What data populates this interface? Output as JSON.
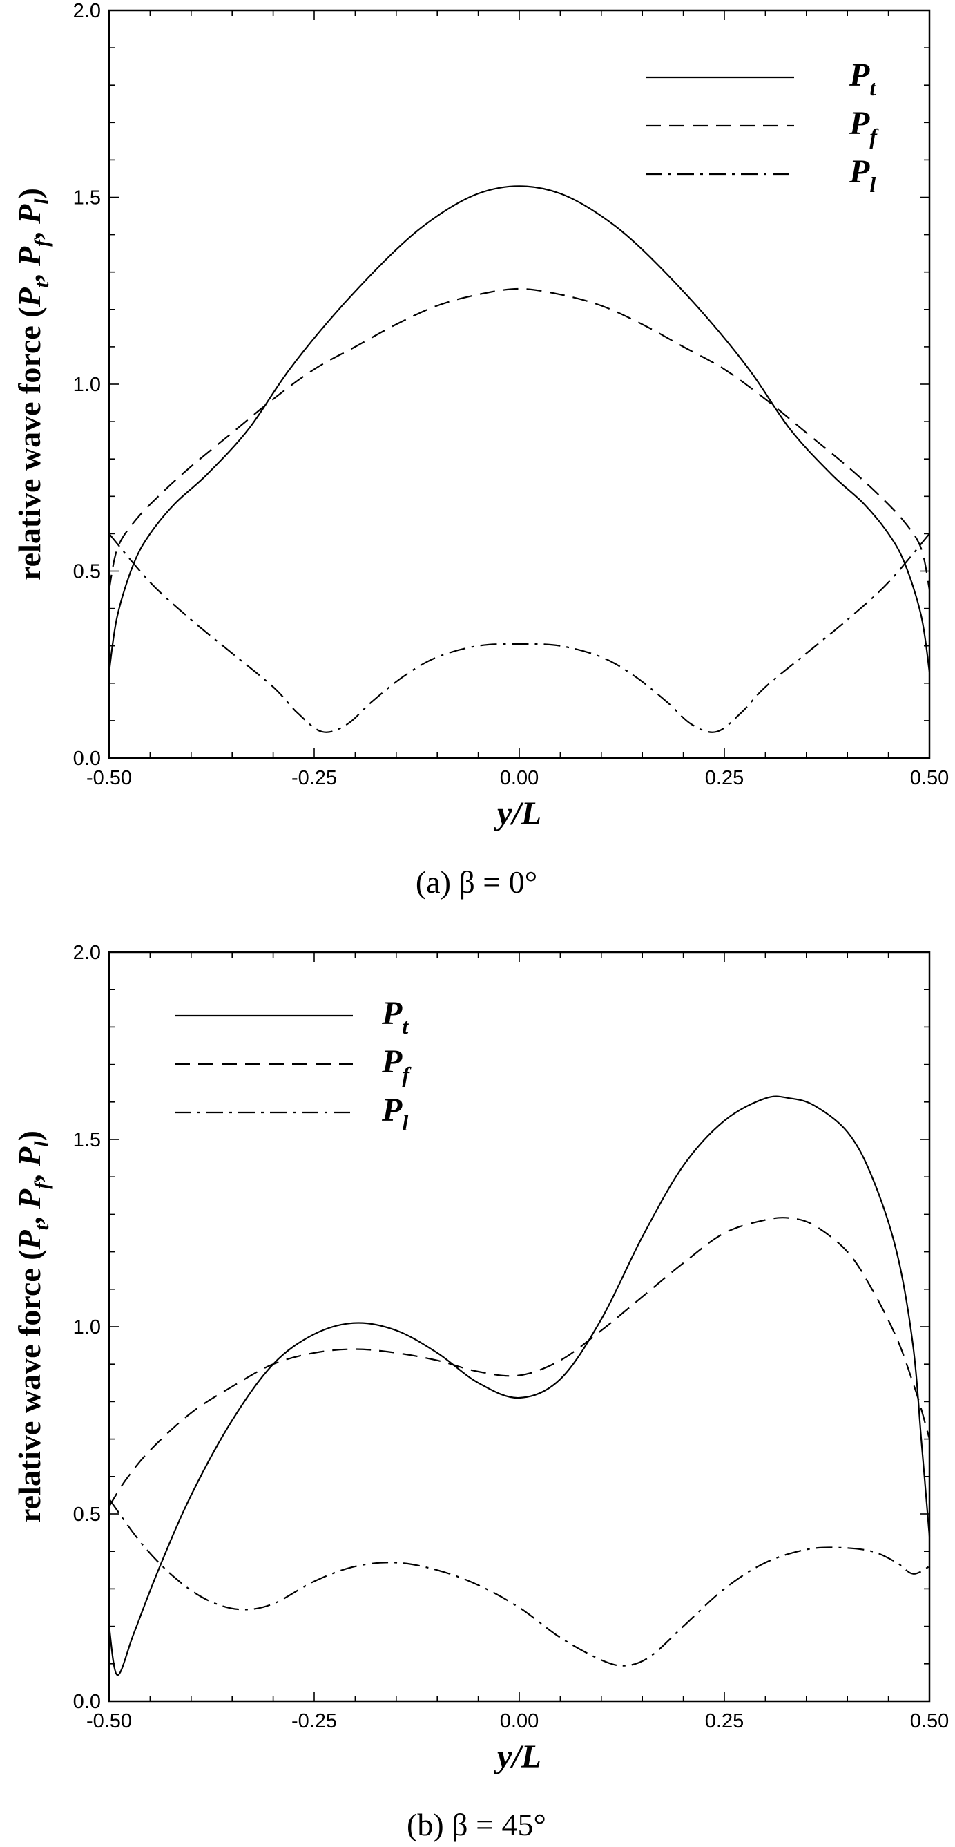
{
  "chart_data": [
    {
      "type": "line",
      "caption": "(a)  β = 0°",
      "xlabel": "y/L",
      "ylabel": "relative wave force (P",
      "ylabel_parts": [
        "relative wave force (",
        "P",
        "t",
        ", ",
        "P",
        "f",
        ", ",
        "P",
        "l",
        ")"
      ],
      "xlim": [
        -0.5,
        0.5
      ],
      "ylim": [
        0.0,
        2.0
      ],
      "x_ticks": [
        "-0.50",
        "-0.25",
        "0.00",
        "0.25",
        "0.50"
      ],
      "y_ticks": [
        "0.0",
        "0.5",
        "1.0",
        "1.5",
        "2.0"
      ],
      "grid": false,
      "legend_position": "top-right",
      "series": [
        {
          "name": "P",
          "subscript": "t",
          "style": "solid",
          "x": [
            -0.5,
            -0.49,
            -0.47,
            -0.45,
            -0.42,
            -0.38,
            -0.33,
            -0.28,
            -0.22,
            -0.15,
            -0.1,
            -0.05,
            0.0,
            0.05,
            0.1,
            0.15,
            0.22,
            0.28,
            0.33,
            0.38,
            0.42,
            0.45,
            0.47,
            0.49,
            0.5
          ],
          "y": [
            0.23,
            0.38,
            0.52,
            0.6,
            0.68,
            0.76,
            0.88,
            1.04,
            1.2,
            1.36,
            1.45,
            1.51,
            1.53,
            1.51,
            1.45,
            1.36,
            1.2,
            1.04,
            0.88,
            0.76,
            0.68,
            0.6,
            0.52,
            0.38,
            0.23
          ]
        },
        {
          "name": "P",
          "subscript": "f",
          "style": "dashed",
          "x": [
            -0.5,
            -0.49,
            -0.47,
            -0.44,
            -0.4,
            -0.35,
            -0.3,
            -0.25,
            -0.2,
            -0.15,
            -0.1,
            -0.05,
            0.0,
            0.05,
            0.1,
            0.15,
            0.2,
            0.25,
            0.3,
            0.35,
            0.4,
            0.44,
            0.47,
            0.49,
            0.5
          ],
          "y": [
            0.45,
            0.56,
            0.63,
            0.7,
            0.78,
            0.87,
            0.96,
            1.04,
            1.1,
            1.16,
            1.21,
            1.24,
            1.255,
            1.24,
            1.21,
            1.16,
            1.1,
            1.04,
            0.96,
            0.87,
            0.78,
            0.7,
            0.63,
            0.56,
            0.45
          ]
        },
        {
          "name": "P",
          "subscript": "l",
          "style": "dashdot",
          "x": [
            -0.5,
            -0.45,
            -0.4,
            -0.35,
            -0.3,
            -0.27,
            -0.24,
            -0.21,
            -0.18,
            -0.14,
            -0.1,
            -0.05,
            0.0,
            0.05,
            0.1,
            0.14,
            0.18,
            0.21,
            0.24,
            0.27,
            0.3,
            0.35,
            0.4,
            0.45,
            0.5
          ],
          "y": [
            0.6,
            0.47,
            0.37,
            0.28,
            0.19,
            0.12,
            0.07,
            0.09,
            0.15,
            0.22,
            0.27,
            0.3,
            0.305,
            0.3,
            0.27,
            0.22,
            0.15,
            0.09,
            0.07,
            0.12,
            0.19,
            0.28,
            0.37,
            0.47,
            0.6
          ]
        }
      ]
    },
    {
      "type": "line",
      "caption": "(b)  β = 45°",
      "xlabel": "y/L",
      "ylabel": "relative wave force (P",
      "ylabel_parts": [
        "relative wave force (",
        "P",
        "t",
        ", ",
        "P",
        "f",
        ", ",
        "P",
        "l",
        ")"
      ],
      "xlim": [
        -0.5,
        0.5
      ],
      "ylim": [
        0.0,
        2.0
      ],
      "x_ticks": [
        "-0.50",
        "-0.25",
        "0.00",
        "0.25",
        "0.50"
      ],
      "y_ticks": [
        "0.0",
        "0.5",
        "1.0",
        "1.5",
        "2.0"
      ],
      "grid": false,
      "legend_position": "top-left",
      "series": [
        {
          "name": "P",
          "subscript": "t",
          "style": "solid",
          "x": [
            -0.5,
            -0.49,
            -0.47,
            -0.44,
            -0.4,
            -0.35,
            -0.3,
            -0.25,
            -0.2,
            -0.15,
            -0.1,
            -0.05,
            0.0,
            0.05,
            0.1,
            0.15,
            0.2,
            0.25,
            0.3,
            0.33,
            0.36,
            0.4,
            0.43,
            0.46,
            0.48,
            0.49,
            0.5
          ],
          "y": [
            0.2,
            0.07,
            0.18,
            0.35,
            0.55,
            0.75,
            0.9,
            0.98,
            1.01,
            0.99,
            0.93,
            0.85,
            0.81,
            0.86,
            1.02,
            1.24,
            1.43,
            1.55,
            1.61,
            1.61,
            1.59,
            1.52,
            1.4,
            1.2,
            0.95,
            0.7,
            0.44
          ]
        },
        {
          "name": "P",
          "subscript": "f",
          "style": "dashed",
          "x": [
            -0.5,
            -0.48,
            -0.45,
            -0.4,
            -0.35,
            -0.3,
            -0.25,
            -0.2,
            -0.15,
            -0.1,
            -0.05,
            0.0,
            0.05,
            0.1,
            0.15,
            0.2,
            0.25,
            0.3,
            0.33,
            0.36,
            0.4,
            0.43,
            0.46,
            0.48,
            0.49,
            0.5
          ],
          "y": [
            0.52,
            0.59,
            0.67,
            0.77,
            0.84,
            0.9,
            0.93,
            0.94,
            0.93,
            0.91,
            0.88,
            0.87,
            0.91,
            0.99,
            1.08,
            1.17,
            1.25,
            1.285,
            1.29,
            1.27,
            1.2,
            1.1,
            0.97,
            0.85,
            0.78,
            0.7
          ]
        },
        {
          "name": "P",
          "subscript": "l",
          "style": "dashdot",
          "x": [
            -0.5,
            -0.46,
            -0.42,
            -0.38,
            -0.34,
            -0.3,
            -0.25,
            -0.2,
            -0.15,
            -0.1,
            -0.05,
            0.0,
            0.05,
            0.1,
            0.13,
            0.16,
            0.2,
            0.25,
            0.3,
            0.35,
            0.39,
            0.43,
            0.46,
            0.48,
            0.5
          ],
          "y": [
            0.54,
            0.42,
            0.33,
            0.27,
            0.245,
            0.26,
            0.32,
            0.36,
            0.37,
            0.35,
            0.31,
            0.25,
            0.17,
            0.11,
            0.095,
            0.12,
            0.2,
            0.3,
            0.37,
            0.405,
            0.41,
            0.4,
            0.37,
            0.34,
            0.36
          ]
        }
      ]
    }
  ]
}
